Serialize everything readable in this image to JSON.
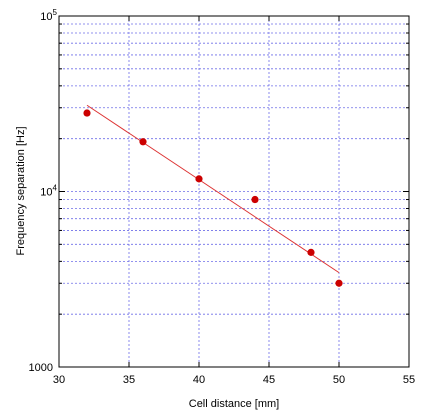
{
  "chart_data": {
    "type": "scatter",
    "xlabel": "Cell distance [mm]",
    "ylabel": "Frequency separation [Hz]",
    "xlim": [
      30,
      55
    ],
    "ylim": [
      1000,
      100000
    ],
    "yscale": "log",
    "grid": true,
    "x_ticks": [
      30,
      35,
      40,
      45,
      50,
      55
    ],
    "x_tick_labels": [
      "30",
      "35",
      "40",
      "45",
      "50",
      "55"
    ],
    "y_major_ticks": [
      1000,
      10000,
      100000
    ],
    "y_tick_labels": [
      {
        "base": "1000",
        "exp": ""
      },
      {
        "base": "10",
        "exp": "4"
      },
      {
        "base": "10",
        "exp": "5"
      }
    ],
    "series": [
      {
        "type": "scatter",
        "color": "#cc0000",
        "x": [
          32,
          36,
          40,
          44,
          48,
          50
        ],
        "y": [
          28000,
          19200,
          11800,
          9000,
          4500,
          3000
        ]
      },
      {
        "type": "line",
        "color": "#dd3333",
        "x": [
          32,
          50
        ],
        "y": [
          31000,
          3450
        ]
      }
    ],
    "colors": {
      "grid": "#6e6ee8",
      "frame": "#000000",
      "marker": "#cc0000",
      "fit_line": "#dd3333"
    }
  }
}
